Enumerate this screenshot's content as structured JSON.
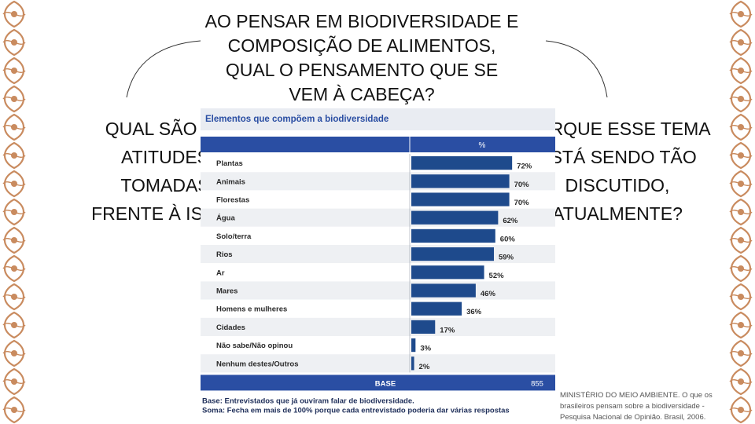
{
  "slide": {
    "title_lines": [
      "AO PENSAR EM BIODIVERSIDADE E",
      "COMPOSIÇÃO DE ALIMENTOS,",
      "QUAL O PENSAMENTO QUE SE",
      "VEM À CABEÇA?"
    ],
    "left_lines": [
      "QUAL SÃO AS",
      "ATITUDES",
      "TOMADAS",
      "FRENTE À ISSO?"
    ],
    "right_lines": [
      "PORQUE ESSE TEMA",
      "ESTÁ SENDO TÃO",
      "DISCUTIDO,",
      "ATUALMENTE?"
    ],
    "citation": "MINISTÉRIO DO MEIO AMBIENTE. O que os brasileiros pensam sobre a biodiversidade - Pesquisa Nacional de Opinião. Brasil, 2006.",
    "colors": {
      "border": "#c98b5f",
      "bar": "#1e4a8c",
      "header": "#2a4ea3"
    }
  },
  "chart_data": {
    "type": "bar",
    "orientation": "horizontal",
    "title": "Elementos que compõem a biodiversidade",
    "header_unit": "%",
    "categories": [
      "Plantas",
      "Animais",
      "Florestas",
      "Água",
      "Solo/terra",
      "Rios",
      "Ar",
      "Mares",
      "Homens e mulheres",
      "Cidades",
      "Não sabe/Não opinou",
      "Nenhum destes/Outros"
    ],
    "values": [
      72,
      70,
      70,
      62,
      60,
      59,
      52,
      46,
      36,
      17,
      3,
      2
    ],
    "value_labels": [
      "72%",
      "70%",
      "70%",
      "62%",
      "60%",
      "59%",
      "52%",
      "46%",
      "36%",
      "17%",
      "3%",
      "2%"
    ],
    "xlim": [
      0,
      100
    ],
    "base_label": "BASE",
    "base_value": "855",
    "footnotes": [
      "Base: Entrevistados que já ouviram falar de biodiversidade.",
      "Soma: Fecha em mais de 100% porque cada entrevistado poderia dar várias respostas"
    ]
  }
}
